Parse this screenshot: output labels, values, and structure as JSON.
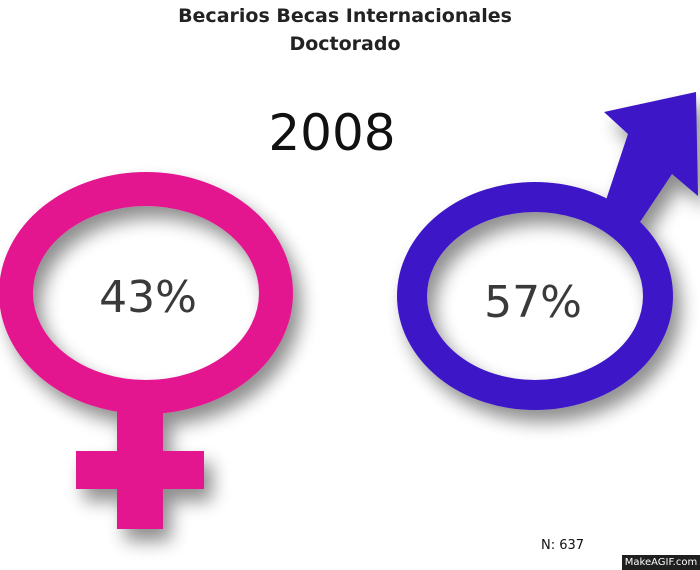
{
  "chart_data": {
    "type": "pie",
    "title": "Becarios Becas Internacionales",
    "subtitle": "Doctorado",
    "year": "2008",
    "categories": [
      "female",
      "male"
    ],
    "values": [
      43,
      57
    ],
    "labels": [
      "43%",
      "57%"
    ],
    "colors": [
      "#e3148f",
      "#3d14c7"
    ],
    "icons": [
      "female-symbol-icon",
      "male-symbol-icon"
    ],
    "note": "N: 637"
  },
  "watermark": "MakeAGIF.com"
}
